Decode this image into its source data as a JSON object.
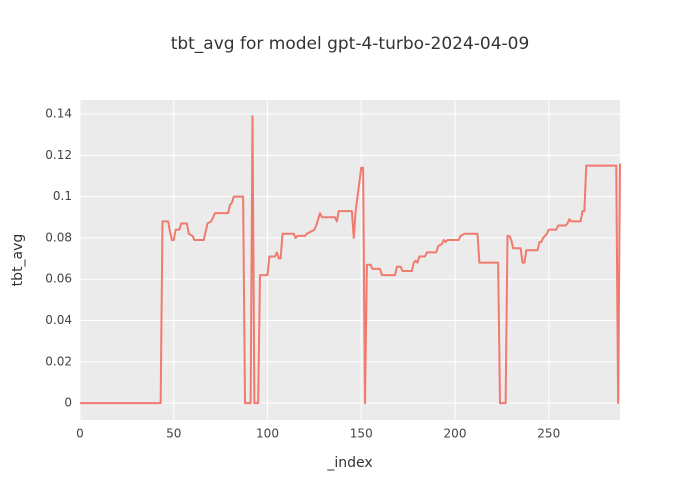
{
  "chart_data": {
    "type": "line",
    "title": "tbt_avg for model gpt-4-turbo-2024-04-09",
    "x_label": "_index",
    "y_label": "tbt_avg",
    "color": "#f07a6e",
    "grid": true,
    "x": [
      0,
      43,
      44,
      47,
      48,
      49,
      50,
      51,
      53,
      54,
      57,
      58,
      60,
      61,
      66,
      67,
      68,
      70,
      72,
      79,
      80,
      81,
      82,
      87,
      88,
      91,
      92,
      93,
      95,
      96,
      100,
      101,
      104,
      105,
      106,
      107,
      108,
      114,
      115,
      116,
      120,
      121,
      123,
      125,
      126,
      128,
      129,
      136,
      137,
      138,
      145,
      146,
      147,
      150,
      151,
      152,
      153,
      155,
      156,
      160,
      161,
      168,
      169,
      171,
      172,
      177,
      178,
      179,
      180,
      181,
      184,
      185,
      190,
      191,
      193,
      194,
      195,
      196,
      202,
      203,
      205,
      212,
      213,
      223,
      224,
      227,
      228,
      229,
      230,
      231,
      235,
      236,
      237,
      238,
      244,
      245,
      246,
      247,
      249,
      250,
      254,
      255,
      259,
      260,
      261,
      262,
      267,
      268,
      269,
      270,
      286,
      287,
      288
    ],
    "values": [
      0,
      0,
      0.088,
      0.088,
      0.083,
      0.079,
      0.079,
      0.084,
      0.084,
      0.087,
      0.087,
      0.082,
      0.081,
      0.079,
      0.079,
      0.083,
      0.087,
      0.088,
      0.092,
      0.092,
      0.096,
      0.097,
      0.1,
      0.1,
      0,
      0,
      0.139,
      0,
      0,
      0.062,
      0.062,
      0.071,
      0.071,
      0.073,
      0.07,
      0.07,
      0.082,
      0.082,
      0.08,
      0.081,
      0.081,
      0.082,
      0.083,
      0.084,
      0.086,
      0.092,
      0.09,
      0.09,
      0.088,
      0.093,
      0.093,
      0.08,
      0.093,
      0.114,
      0.114,
      0,
      0.067,
      0.067,
      0.065,
      0.065,
      0.062,
      0.062,
      0.066,
      0.066,
      0.064,
      0.064,
      0.068,
      0.069,
      0.068,
      0.071,
      0.071,
      0.073,
      0.073,
      0.076,
      0.077,
      0.079,
      0.078,
      0.079,
      0.079,
      0.081,
      0.082,
      0.082,
      0.068,
      0.068,
      0,
      0,
      0.081,
      0.081,
      0.079,
      0.075,
      0.075,
      0.068,
      0.068,
      0.074,
      0.074,
      0.078,
      0.078,
      0.08,
      0.082,
      0.084,
      0.084,
      0.086,
      0.086,
      0.087,
      0.089,
      0.088,
      0.088,
      0.093,
      0.093,
      0.115,
      0.115,
      0,
      0.116
    ],
    "xlim": [
      0,
      288
    ],
    "xticks": [
      0,
      50,
      100,
      150,
      200,
      250
    ],
    "ylim": [
      -0.0082,
      0.1468
    ],
    "yticks": [
      0,
      0.02,
      0.04,
      0.06,
      0.08,
      0.1,
      0.12,
      0.14
    ]
  }
}
